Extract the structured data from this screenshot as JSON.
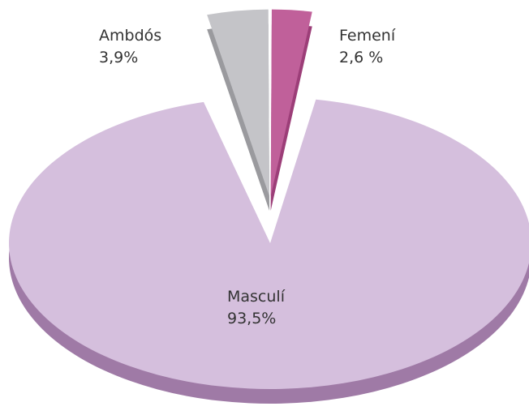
{
  "chart_data": {
    "type": "pie",
    "categories": [
      "Femení",
      "Masculí",
      "Ambdós"
    ],
    "values": [
      2.6,
      93.5,
      3.9
    ],
    "value_labels": [
      "2,6 %",
      "93,5%",
      "3,9%"
    ],
    "colors": [
      "#c0609a",
      "#d5bfdd",
      "#c4c4c8"
    ],
    "side_colors": [
      "#9c3e78",
      "#9f7aa6",
      "#9a9a9e"
    ],
    "explode": [
      true,
      false,
      true
    ]
  }
}
